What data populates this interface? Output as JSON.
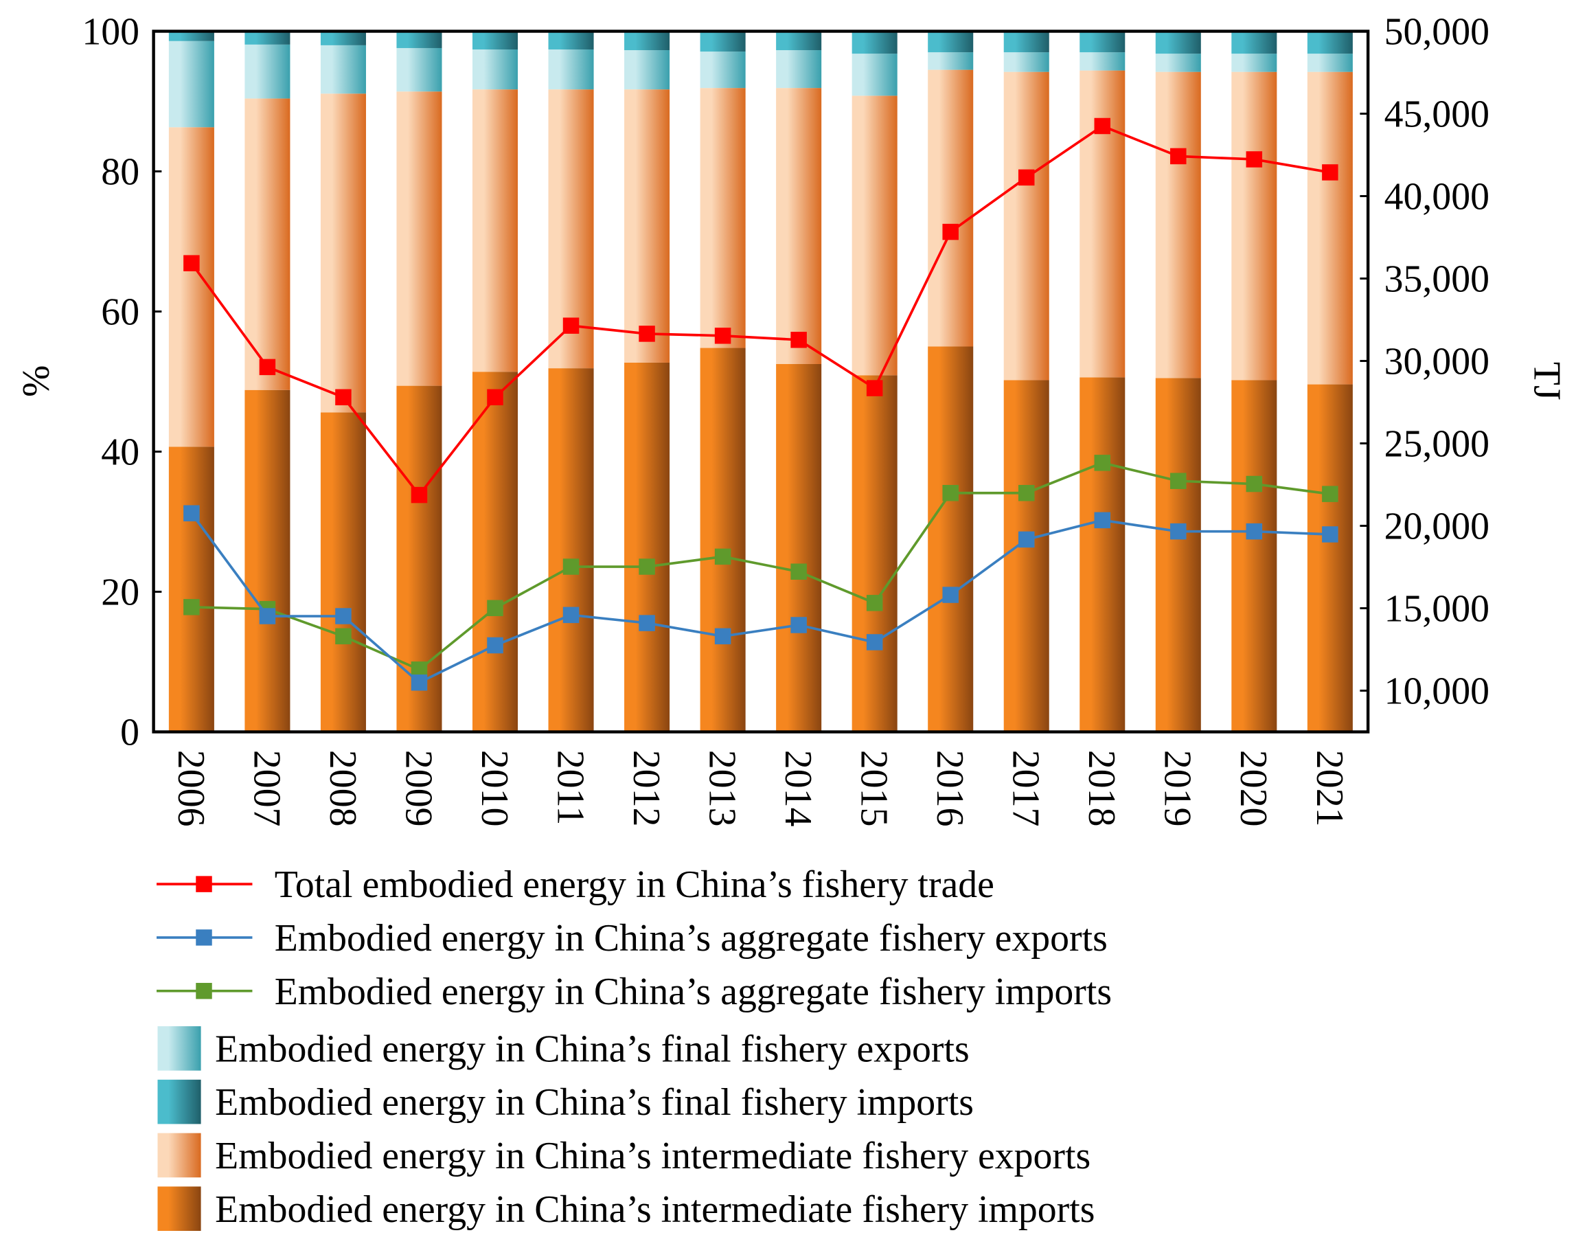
{
  "chart_data": {
    "type": "bar",
    "stacked": true,
    "categories": [
      "2006",
      "2007",
      "2008",
      "2009",
      "2010",
      "2011",
      "2012",
      "2013",
      "2014",
      "2015",
      "2016",
      "2017",
      "2018",
      "2019",
      "2020",
      "2021"
    ],
    "ylabel": "%",
    "y2label": "TJ",
    "ylim": [
      0,
      100
    ],
    "y2lim": [
      7500,
      50000
    ],
    "yticks": [
      0,
      20,
      40,
      60,
      80,
      100
    ],
    "y2ticks": [
      10000,
      15000,
      20000,
      25000,
      30000,
      35000,
      40000,
      45000,
      50000
    ],
    "y2tick_labels": [
      "10,000",
      "15,000",
      "20,000",
      "25,000",
      "30,000",
      "35,000",
      "40,000",
      "45,000",
      "50,000"
    ],
    "legend_position": "bottom",
    "bar_series": [
      {
        "name": "Embodied energy in China’s intermediate fishery imports",
        "colors": [
          "#f5861f",
          "#8a4511"
        ],
        "values": [
          40.7,
          48.8,
          45.6,
          49.4,
          51.4,
          51.9,
          52.7,
          54.8,
          52.5,
          50.9,
          55.0,
          50.2,
          50.6,
          50.5,
          50.2,
          49.6
        ]
      },
      {
        "name": "Embodied energy in China’s intermediate fishery exports",
        "colors": [
          "#fcd8b8",
          "#d96a20"
        ],
        "values": [
          45.6,
          41.6,
          45.5,
          42.0,
          40.3,
          39.8,
          39.0,
          37.1,
          39.4,
          39.9,
          39.5,
          44.0,
          43.8,
          43.7,
          44.0,
          44.6
        ]
      },
      {
        "name": "Embodied energy in China’s final fishery exports",
        "colors": [
          "#c8eaee",
          "#3aa0ad"
        ],
        "values": [
          12.3,
          7.7,
          6.9,
          6.2,
          5.7,
          5.7,
          5.6,
          5.2,
          5.4,
          6.0,
          2.5,
          2.8,
          2.6,
          2.6,
          2.6,
          2.6
        ]
      },
      {
        "name": "Embodied energy in China’s final fishery imports",
        "colors": [
          "#4bbccc",
          "#1f5f6a"
        ],
        "values": [
          1.4,
          1.9,
          2.0,
          2.4,
          2.6,
          2.6,
          2.7,
          2.9,
          2.7,
          3.2,
          3.0,
          3.0,
          3.0,
          3.2,
          3.2,
          3.2
        ]
      }
    ],
    "line_series": [
      {
        "name": "Total embodied energy in China’s fishery trade",
        "color": "#ff0000",
        "values": [
          35930,
          29630,
          27800,
          21870,
          27800,
          32140,
          31650,
          31530,
          31280,
          28350,
          37830,
          41130,
          44250,
          42420,
          42230,
          41440
        ]
      },
      {
        "name": "Embodied energy in China’s aggregate fishery exports",
        "color": "#3a7fc0",
        "values": [
          20760,
          14520,
          14520,
          10490,
          12750,
          14590,
          14100,
          13300,
          13980,
          12940,
          15810,
          19170,
          20340,
          19660,
          19660,
          19480
        ]
      },
      {
        "name": "Embodied energy in China’s aggregate fishery imports",
        "color": "#5f9a2c",
        "values": [
          15070,
          14950,
          13300,
          11280,
          15010,
          17520,
          17520,
          18130,
          17220,
          15320,
          21990,
          21990,
          23820,
          22720,
          22540,
          21930
        ]
      }
    ]
  }
}
